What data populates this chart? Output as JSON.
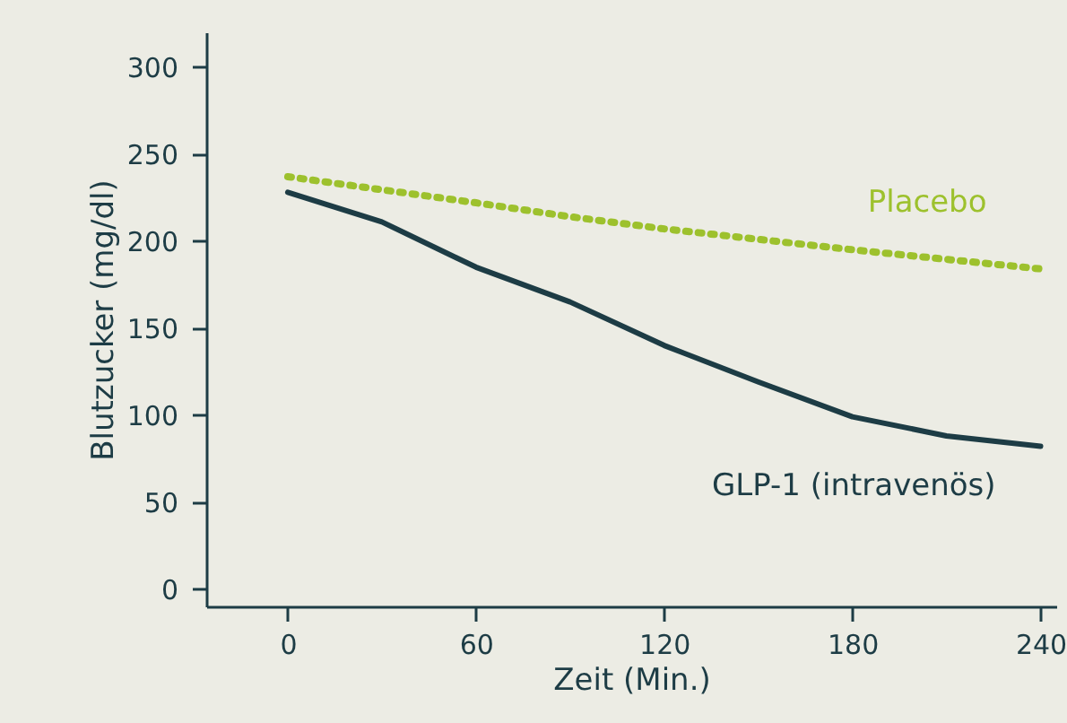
{
  "chart_data": {
    "type": "line",
    "xlabel": "Zeit (Min.)",
    "ylabel": "Blutzucker (mg/dl)",
    "xlim": [
      -26,
      245
    ],
    "xticks": [
      0,
      60,
      120,
      180,
      240
    ],
    "ylim": [
      -10,
      320
    ],
    "yticks": [
      0,
      50,
      100,
      150,
      200,
      250,
      300
    ],
    "grid": false,
    "marker": "none",
    "series": [
      {
        "name": "Placebo",
        "color": "#9dc12d",
        "line_style": "dotted",
        "x": [
          0,
          60,
          90,
          120,
          180,
          240
        ],
        "values": [
          237,
          222,
          214,
          207,
          195,
          184
        ]
      },
      {
        "name": "GLP-1 (intravenös)",
        "color": "#1d3c45",
        "line_style": "solid",
        "x": [
          0,
          30,
          60,
          90,
          120,
          150,
          180,
          210,
          240
        ],
        "values": [
          228,
          211,
          185,
          165,
          140,
          119,
          99,
          88,
          82
        ]
      }
    ]
  }
}
